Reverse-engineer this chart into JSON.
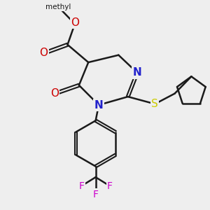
{
  "background_color": "#eeeeee",
  "bond_color": "#1a1a1a",
  "bond_width": 1.8,
  "atom_colors": {
    "N": "#2222cc",
    "O": "#cc0000",
    "S": "#cccc00",
    "F": "#cc00cc",
    "C": "#1a1a1a"
  }
}
